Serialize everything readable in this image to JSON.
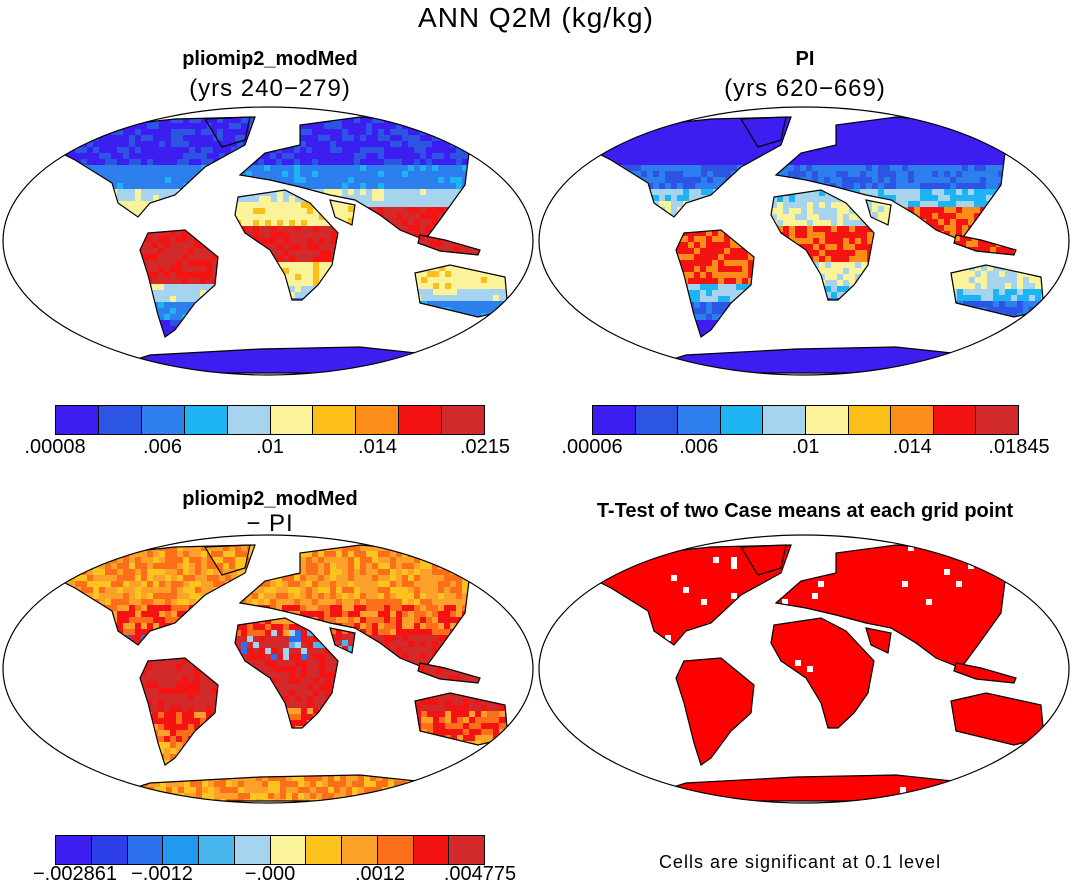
{
  "figure": {
    "title": "ANN Q2M (kg/kg)",
    "panels": [
      {
        "id": "p1",
        "title": "pliomip2_modMed",
        "subtitle": "(yrs 240−279)",
        "scheme": "abs_hot",
        "colorbar": {
          "colors": [
            "#3c1ef0",
            "#2c55e3",
            "#2d7fee",
            "#1eb3f2",
            "#a6d3ee",
            "#fbf39a",
            "#fcbf19",
            "#fb8d18",
            "#f31313",
            "#d22a2a"
          ],
          "ticks": [
            ".00008",
            ".006",
            ".01",
            ".014",
            ".0215"
          ]
        }
      },
      {
        "id": "p2",
        "title": "PI",
        "subtitle": "(yrs 620−669)",
        "scheme": "abs_cool",
        "colorbar": {
          "colors": [
            "#3c1ef0",
            "#2c55e3",
            "#2d7fee",
            "#1eb3f2",
            "#a6d3ee",
            "#fbf39a",
            "#fcbf19",
            "#fb8d18",
            "#f31313",
            "#d22a2a"
          ],
          "ticks": [
            ".00006",
            ".006",
            ".01",
            ".014",
            ".01845"
          ]
        }
      },
      {
        "id": "p3",
        "title": "pliomip2_modMed",
        "subtitle": "− PI",
        "scheme": "diff",
        "colorbar": {
          "colors": [
            "#3c1ef0",
            "#2c3ee8",
            "#2d70ee",
            "#2199f0",
            "#49b6ee",
            "#a6d3ee",
            "#fbf39a",
            "#fcc41d",
            "#fca12a",
            "#fb6f1a",
            "#f31313",
            "#d22a2a"
          ],
          "ticks": [
            "−.002861",
            "−.0012",
            "−.000",
            ".0012",
            ".004775"
          ]
        }
      },
      {
        "id": "p4",
        "title": "T-Test of two Case means at each grid point",
        "subtitle": "",
        "scheme": "ttest",
        "note": "Cells are significant at 0.1 level"
      }
    ]
  },
  "colors": {
    "sig": "#ff0000",
    "outline": "#000000"
  }
}
